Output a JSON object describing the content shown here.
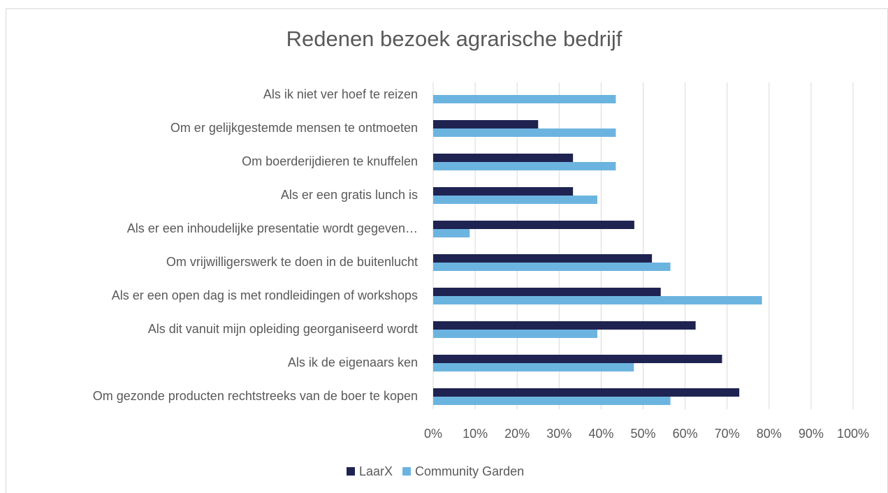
{
  "chart_data": {
    "type": "hbar",
    "title": "Redenen bezoek agrarische bedrijf",
    "categories": [
      "Als ik niet ver hoef te reizen",
      "Om er gelijkgestemde mensen te ontmoeten",
      "Om boerderijdieren te knuffelen",
      "Als er een gratis lunch is",
      "Als er een inhoudelijke presentatie wordt gegeven…",
      "Om vrijwilligerswerk te doen in de buitenlucht",
      "Als er een open dag is met rondleidingen of workshops",
      "Als dit vanuit mijn opleiding georganiseerd wordt",
      "Als ik de eigenaars ken",
      "Om gezonde producten rechtstreeks van de boer te kopen"
    ],
    "series": [
      {
        "name": "LaarX",
        "color": "#1f2351",
        "values": [
          0,
          25,
          33.3,
          33.3,
          47.9,
          52.1,
          54.2,
          62.5,
          68.8,
          72.9
        ]
      },
      {
        "name": "Community Garden",
        "color": "#6cb4e0",
        "values": [
          43.5,
          43.5,
          43.5,
          39.1,
          8.7,
          56.5,
          78.3,
          39.1,
          47.8,
          56.5
        ]
      }
    ],
    "xlim": [
      0,
      100
    ],
    "xticks": [
      {
        "value": 0,
        "label": "0%"
      },
      {
        "value": 10,
        "label": "10%"
      },
      {
        "value": 20,
        "label": "20%"
      },
      {
        "value": 30,
        "label": "30%"
      },
      {
        "value": 40,
        "label": "40%"
      },
      {
        "value": 50,
        "label": "50%"
      },
      {
        "value": 60,
        "label": "60%"
      },
      {
        "value": 70,
        "label": "70%"
      },
      {
        "value": 80,
        "label": "80%"
      },
      {
        "value": 90,
        "label": "90%"
      },
      {
        "value": 100,
        "label": "100%"
      }
    ],
    "grid": true,
    "legend": "bottom"
  }
}
